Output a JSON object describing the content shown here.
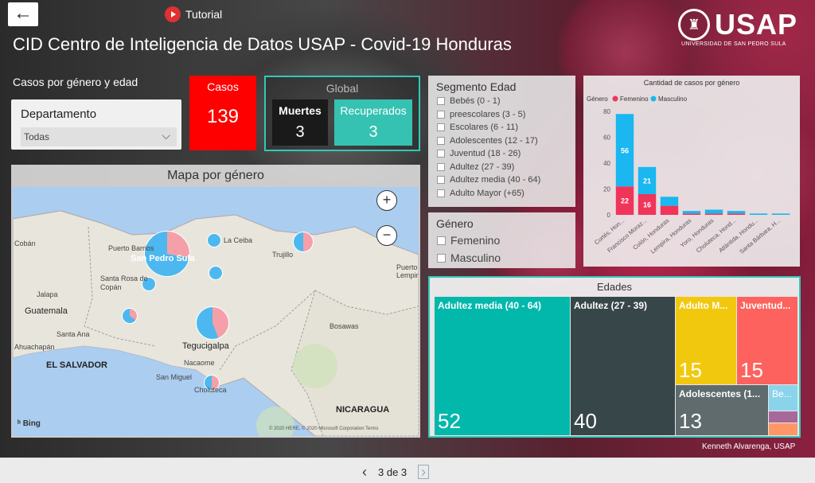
{
  "header": {
    "back_icon": "arrow-left-icon",
    "tutorial_label": "Tutorial",
    "title": "CID Centro de Inteligencia de Datos USAP - Covid-19 Honduras",
    "logo_text": "USAP",
    "logo_subtext": "UNIVERSIDAD DE SAN PEDRO SULA"
  },
  "filters": {
    "subtitle": "Casos por género y edad",
    "departamento_label": "Departamento",
    "departamento_value": "Todas"
  },
  "kpis": {
    "casos_label": "Casos",
    "casos_value": "139",
    "global_label": "Global",
    "muertes_label": "Muertes",
    "muertes_value": "3",
    "recuperados_label": "Recuperados",
    "recuperados_value": "3"
  },
  "map": {
    "title": "Mapa por género",
    "labels": {
      "cobán": "Cobán",
      "puerto_barrios": "Puerto Barrios",
      "san_pedro_sula": "San Pedro Sula",
      "la_ceiba": "La Ceiba",
      "trujillo": "Trujillo",
      "santa_rosa": "Santa Rosa de Copán",
      "jalapa": "Jalapa",
      "guatemala": "Guatemala",
      "santa_ana": "Santa Ana",
      "ahuachapan": "Ahuachapán",
      "el_salvador": "EL SALVADOR",
      "tegucigalpa": "Tegucigalpa",
      "nacaome": "Nacaome",
      "san_miguel": "San Miguel",
      "choluteca": "Choluteca",
      "nicaragua": "NICARAGUA",
      "bosawas": "Bosawas",
      "puerto_lempira": "Puerto Lempira"
    },
    "bing": "Bing",
    "copyright": "© 2020 HERE, © 2020 Microsoft Corporation Terms",
    "colors": {
      "masculino": "#4db8f0",
      "femenino": "#f5a0a8"
    }
  },
  "segmento": {
    "title": "Segmento Edad",
    "items": [
      "Bebés (0 - 1)",
      "preescolares (3 - 5)",
      "Escolares (6 - 11)",
      "Adolescentes (12 - 17)",
      "Juventud (18 - 26)",
      "Adultez (27 - 39)",
      "Adultez media (40 - 64)",
      "Adulto Mayor (+65)"
    ]
  },
  "genero": {
    "title": "Género",
    "items": [
      "Femenino",
      "Masculino"
    ]
  },
  "chart_data": {
    "type": "bar",
    "title": "Cantidad de casos por género",
    "legend_title": "Género",
    "legend_position": "top-left",
    "categories": [
      "Cortés, Hon...",
      "Francisco Moraz...",
      "Colón, Honduras",
      "Lempira, Honduras",
      "Yoro, Honduras",
      "Choluteca, Hond...",
      "Atlántida, Hondu...",
      "Santa Bárbara, H..."
    ],
    "series": [
      {
        "name": "Femenino",
        "color": "#f0345a",
        "values": [
          22,
          16,
          7,
          1,
          1,
          1,
          0,
          0
        ]
      },
      {
        "name": "Masculino",
        "color": "#1ab7f0",
        "values": [
          56,
          21,
          7,
          2,
          3,
          2,
          1,
          1
        ]
      }
    ],
    "data_labels": {
      "0": [
        "22",
        "56"
      ],
      "1": [
        "16",
        "21"
      ]
    },
    "ylim": [
      0,
      80
    ],
    "yticks": [
      "0",
      "20",
      "40",
      "60",
      "80"
    ],
    "stacked": true
  },
  "edades": {
    "title": "Edades",
    "blocks": [
      {
        "name": "Adultez media (40 - 64)",
        "value": "52",
        "color": "#01b8aa"
      },
      {
        "name": "Adultez (27 - 39)",
        "value": "40",
        "color": "#374649"
      },
      {
        "name": "Adulto M...",
        "value": "15",
        "color": "#f2c80f"
      },
      {
        "name": "Juventud...",
        "value": "15",
        "color": "#fd625e"
      },
      {
        "name": "Adolescentes (1...",
        "value": "13",
        "color": "#5f6b6d"
      },
      {
        "name": "Be...",
        "value": "",
        "color": "#8ad4eb"
      },
      {
        "name": "",
        "value": "",
        "color": "#a66999"
      },
      {
        "name": "",
        "value": "",
        "color": "#fe9666"
      }
    ]
  },
  "credit": "Kenneth Alvarenga, USAP",
  "footer": {
    "page_label": "3 de 3",
    "prev_icon": "chevron-left-icon",
    "next_icon": "chevron-right-icon"
  }
}
